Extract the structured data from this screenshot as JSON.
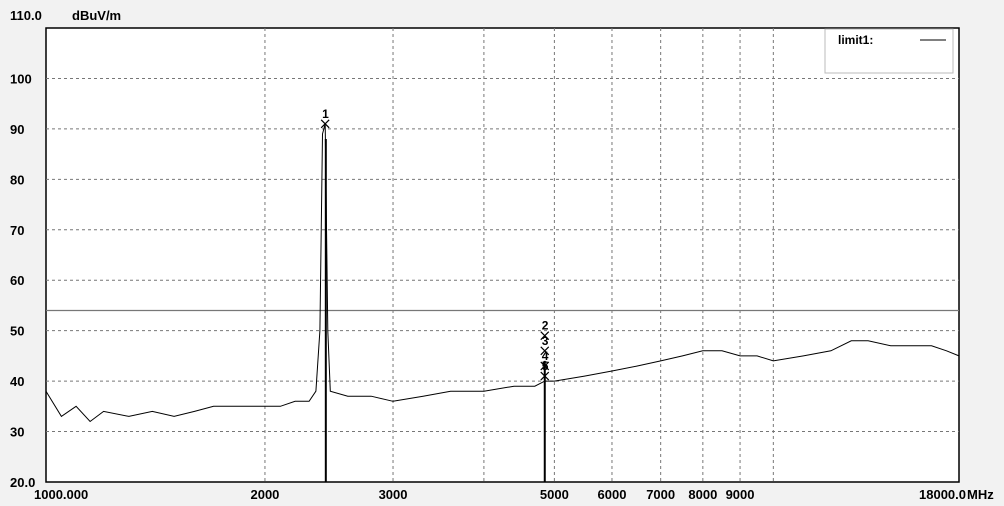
{
  "chart_data": {
    "type": "line",
    "y_unit": "dBuV/m",
    "x_unit": "MHz",
    "x_scale": "log",
    "xlim": [
      1000,
      18000
    ],
    "ylim": [
      20,
      110
    ],
    "grid": true,
    "y_ticks": [
      {
        "value": 110,
        "label": "110.0"
      },
      {
        "value": 100,
        "label": "100"
      },
      {
        "value": 90,
        "label": "90"
      },
      {
        "value": 80,
        "label": "80"
      },
      {
        "value": 70,
        "label": "70"
      },
      {
        "value": 60,
        "label": "60"
      },
      {
        "value": 50,
        "label": "50"
      },
      {
        "value": 40,
        "label": "40"
      },
      {
        "value": 30,
        "label": "30"
      },
      {
        "value": 20,
        "label": "20.0"
      }
    ],
    "x_ticks": [
      {
        "value": 1000,
        "label": "1000.000"
      },
      {
        "value": 2000,
        "label": "2000"
      },
      {
        "value": 3000,
        "label": "3000"
      },
      {
        "value": 5000,
        "label": "5000"
      },
      {
        "value": 6000,
        "label": "6000"
      },
      {
        "value": 7000,
        "label": "7000"
      },
      {
        "value": 8000,
        "label": "8000"
      },
      {
        "value": 9000,
        "label": "9000"
      },
      {
        "value": 18000,
        "label": "18000.0"
      }
    ],
    "x_grid_lines": [
      2000,
      3000,
      4000,
      5000,
      6000,
      7000,
      8000,
      9000,
      10000
    ],
    "limit_line": {
      "name": "limit1:",
      "value": 54,
      "color": "#777777"
    },
    "trace_color": "#000000",
    "series": [
      {
        "values": [
          {
            "x": 1000,
            "y": 38
          },
          {
            "x": 1050,
            "y": 33
          },
          {
            "x": 1100,
            "y": 35
          },
          {
            "x": 1150,
            "y": 32
          },
          {
            "x": 1200,
            "y": 34
          },
          {
            "x": 1300,
            "y": 33
          },
          {
            "x": 1400,
            "y": 34
          },
          {
            "x": 1500,
            "y": 33
          },
          {
            "x": 1600,
            "y": 34
          },
          {
            "x": 1700,
            "y": 35
          },
          {
            "x": 1800,
            "y": 35
          },
          {
            "x": 1900,
            "y": 35
          },
          {
            "x": 2000,
            "y": 35
          },
          {
            "x": 2100,
            "y": 35
          },
          {
            "x": 2200,
            "y": 36
          },
          {
            "x": 2300,
            "y": 36
          },
          {
            "x": 2350,
            "y": 38
          },
          {
            "x": 2380,
            "y": 50
          },
          {
            "x": 2400,
            "y": 89
          },
          {
            "x": 2420,
            "y": 91
          },
          {
            "x": 2440,
            "y": 50
          },
          {
            "x": 2460,
            "y": 38
          },
          {
            "x": 2600,
            "y": 37
          },
          {
            "x": 2800,
            "y": 37
          },
          {
            "x": 3000,
            "y": 36
          },
          {
            "x": 3300,
            "y": 37
          },
          {
            "x": 3600,
            "y": 38
          },
          {
            "x": 4000,
            "y": 38
          },
          {
            "x": 4400,
            "y": 39
          },
          {
            "x": 4700,
            "y": 39
          },
          {
            "x": 4850,
            "y": 40
          },
          {
            "x": 5000,
            "y": 40
          },
          {
            "x": 5500,
            "y": 41
          },
          {
            "x": 6000,
            "y": 42
          },
          {
            "x": 6500,
            "y": 43
          },
          {
            "x": 7000,
            "y": 44
          },
          {
            "x": 7500,
            "y": 45
          },
          {
            "x": 8000,
            "y": 46
          },
          {
            "x": 8500,
            "y": 46
          },
          {
            "x": 9000,
            "y": 45
          },
          {
            "x": 9500,
            "y": 45
          },
          {
            "x": 10000,
            "y": 44
          },
          {
            "x": 11000,
            "y": 45
          },
          {
            "x": 12000,
            "y": 46
          },
          {
            "x": 12800,
            "y": 48
          },
          {
            "x": 13500,
            "y": 48
          },
          {
            "x": 14500,
            "y": 47
          },
          {
            "x": 15500,
            "y": 47
          },
          {
            "x": 16500,
            "y": 47
          },
          {
            "x": 17300,
            "y": 46
          },
          {
            "x": 18000,
            "y": 45
          }
        ]
      }
    ],
    "markers": [
      {
        "label": "1",
        "x": 2420,
        "y": 91
      },
      {
        "label": "2",
        "x": 4850,
        "y": 49
      },
      {
        "label": "3",
        "x": 4850,
        "y": 46
      },
      {
        "label": "4",
        "x": 4850,
        "y": 43
      },
      {
        "label": "5",
        "x": 4850,
        "y": 41
      }
    ],
    "vertical_lines": [
      {
        "x": 2425,
        "y_top": 88
      },
      {
        "x": 4850,
        "y_top": 44
      }
    ]
  }
}
